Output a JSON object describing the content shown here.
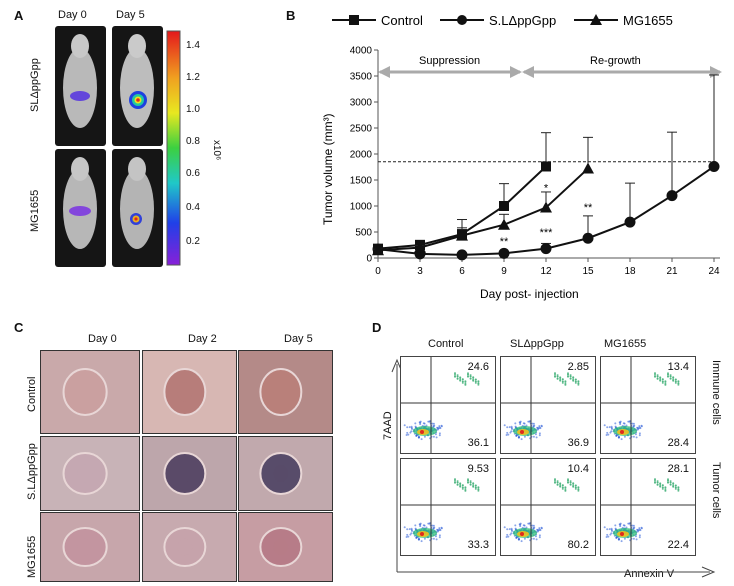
{
  "panel_a": {
    "label": "A",
    "columns": [
      "Day 0",
      "Day 5"
    ],
    "rows": [
      "SLΔppGpp",
      "MG1655"
    ],
    "colorbar_ticks": [
      "1.4",
      "1.2",
      "1.0",
      "0.8",
      "0.6",
      "0.4",
      "0.2"
    ],
    "colorbar_unit": "x10⁶"
  },
  "panel_b": {
    "label": "B",
    "legend": [
      "Control",
      "S.LΔppGpp",
      "MG1655"
    ],
    "phase_labels": [
      "Suppression",
      "Re-growth"
    ],
    "ylabel": "Tumor volume  (mm³)",
    "xlabel": "Day post- injection",
    "significance": [
      {
        "text": "**",
        "day": 9
      },
      {
        "text": "*",
        "day": 12
      },
      {
        "text": "***",
        "day": 12
      },
      {
        "text": "**",
        "day": 15
      }
    ]
  },
  "chart_data": {
    "type": "line",
    "title": "",
    "xlabel": "Day post- injection",
    "ylabel": "Tumor volume  (mm³)",
    "x_ticks": [
      0,
      3,
      6,
      9,
      12,
      15,
      18,
      21,
      24
    ],
    "y_ticks": [
      0,
      500,
      1000,
      1500,
      2000,
      2500,
      3000,
      3500,
      4000
    ],
    "xlim": [
      0,
      25
    ],
    "ylim": [
      0,
      4000
    ],
    "threshold_line": 1850,
    "series": [
      {
        "name": "Control",
        "marker": "square",
        "x": [
          0,
          3,
          6,
          9,
          12
        ],
        "values": [
          180,
          250,
          460,
          1000,
          1760
        ],
        "error": [
          20,
          90,
          280,
          430,
          650
        ]
      },
      {
        "name": "S.LΔppGpp",
        "marker": "circle",
        "x": [
          0,
          3,
          6,
          9,
          12,
          15,
          18,
          21,
          24
        ],
        "values": [
          170,
          80,
          60,
          90,
          180,
          380,
          690,
          1200,
          1760
        ],
        "error": [
          20,
          20,
          20,
          30,
          100,
          430,
          750,
          1220,
          1760
        ]
      },
      {
        "name": "MG1655",
        "marker": "triangle",
        "x": [
          0,
          3,
          6,
          9,
          12,
          15
        ],
        "values": [
          150,
          200,
          430,
          640,
          970,
          1720
        ],
        "error": [
          20,
          40,
          150,
          200,
          300,
          600
        ]
      }
    ]
  },
  "panel_c": {
    "label": "C",
    "columns": [
      "Day 0",
      "Day 2",
      "Day 5"
    ],
    "rows": [
      "Control",
      "S.LΔppGpp",
      "MG1655"
    ]
  },
  "panel_d": {
    "label": "D",
    "columns": [
      "Control",
      "SLΔppGpp",
      "MG1655"
    ],
    "rows": [
      "Immune cells",
      "Tumor cells"
    ],
    "y_axis": "7AAD",
    "x_axis": "Annexin V",
    "quadrants": [
      [
        "24.6",
        "36.1",
        "2.85",
        "36.9",
        "13.4",
        "28.4"
      ],
      [
        "9.53",
        "33.3",
        "10.4",
        "80.2",
        "28.1",
        "22.4"
      ]
    ]
  }
}
